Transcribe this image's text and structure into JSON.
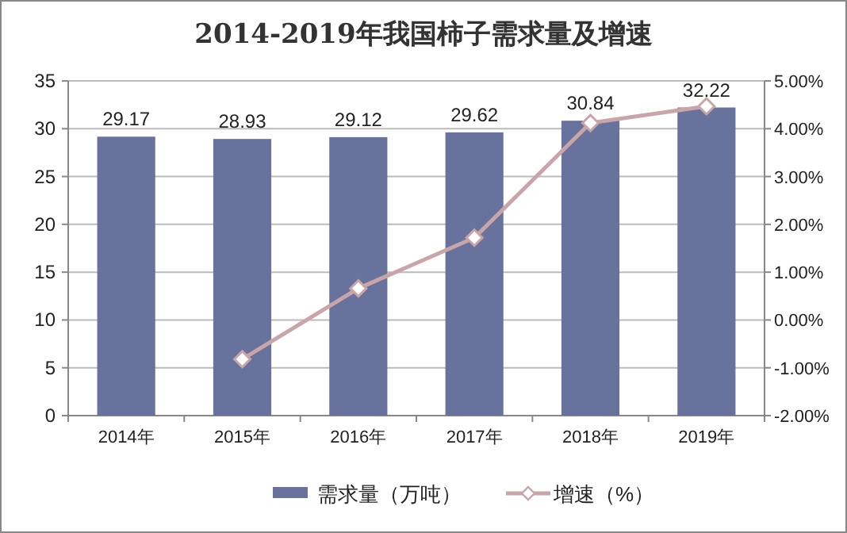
{
  "chart_data": {
    "type": "bar",
    "title": "2014-2019年我国柿子需求量及增速",
    "categories": [
      "2014年",
      "2015年",
      "2016年",
      "2017年",
      "2018年",
      "2019年"
    ],
    "series": [
      {
        "name": "需求量（万吨）",
        "color": "#67739c",
        "values": [
          29.17,
          28.93,
          29.12,
          29.62,
          30.84,
          32.22
        ],
        "data_labels": true
      },
      {
        "name": "增速（%）",
        "type": "line",
        "axis": "y2",
        "color": "#c9a5a8",
        "marker": "diamond",
        "values": [
          null,
          -0.82,
          0.66,
          1.72,
          4.12,
          4.47
        ]
      }
    ],
    "ylim": [
      0,
      35
    ],
    "yticks": [
      0,
      5,
      10,
      15,
      20,
      25,
      30,
      35
    ],
    "y2lim": [
      -2,
      5
    ],
    "y2ticks": [
      {
        "value": -2,
        "label": "-2.00%"
      },
      {
        "value": -1,
        "label": "-1.00%"
      },
      {
        "value": 0,
        "label": "0.00%"
      },
      {
        "value": 1,
        "label": "1.00%"
      },
      {
        "value": 2,
        "label": "2.00%"
      },
      {
        "value": 3,
        "label": "3.00%"
      },
      {
        "value": 4,
        "label": "4.00%"
      },
      {
        "value": 5,
        "label": "5.00%"
      }
    ],
    "grid": "y",
    "legend": "bottom"
  }
}
